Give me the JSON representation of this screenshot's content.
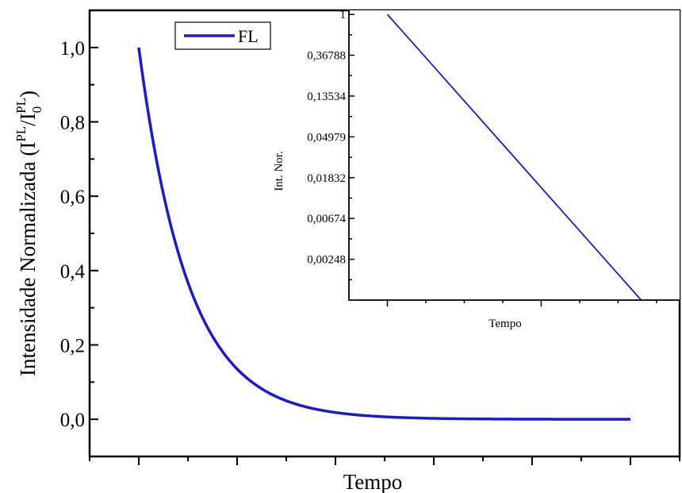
{
  "chart_data": [
    {
      "type": "line",
      "title": "",
      "xlabel": "Tempo",
      "ylabel_parts": {
        "main": "Intensidade Normalizada (I",
        "sup1": "PL",
        "slash": "/I",
        "sub": "0",
        "sup2": "PL",
        "close": ")"
      },
      "xlim": [
        -1.0,
        11.0
      ],
      "ylim": [
        -0.1,
        1.1
      ],
      "yticks": [
        0.0,
        0.2,
        0.4,
        0.6,
        0.8,
        1.0
      ],
      "ytick_labels": [
        "0,0",
        "0,2",
        "0,4",
        "0,6",
        "0,8",
        "1,0"
      ],
      "x_major_ticks": [
        0,
        2,
        4,
        6,
        8,
        10
      ],
      "x_tick_labels_shown": false,
      "legend": {
        "position": "top-left",
        "entries": [
          "FL"
        ]
      },
      "series": [
        {
          "name": "FL",
          "color": "#1a1ad6",
          "function": "exp(-x)",
          "x": [
            0,
            0.25,
            0.5,
            0.75,
            1,
            1.25,
            1.5,
            1.75,
            2,
            2.25,
            2.5,
            2.75,
            3,
            3.25,
            3.5,
            3.75,
            4,
            4.5,
            5,
            5.5,
            6,
            6.5,
            7,
            7.5,
            8,
            8.5,
            9,
            9.5,
            10
          ],
          "y": [
            1.0,
            0.7788,
            0.6065,
            0.4724,
            0.3679,
            0.2865,
            0.2231,
            0.1738,
            0.1353,
            0.1054,
            0.0821,
            0.0639,
            0.0498,
            0.0388,
            0.0302,
            0.0235,
            0.0183,
            0.0111,
            0.0067,
            0.0041,
            0.0025,
            0.0015,
            0.0009,
            0.0006,
            0.0003,
            0.0002,
            0.0001,
            0.0001,
            0.0
          ]
        }
      ]
    },
    {
      "type": "line",
      "title": "",
      "xlabel": "Tempo",
      "ylabel": "Int. Nor.",
      "yscale": "log",
      "xlim": [
        -1.0,
        7.6
      ],
      "ylim_ln": [
        -7.0,
        0.1
      ],
      "yticks_ln": [
        0,
        -1,
        -2,
        -3,
        -4,
        -5,
        -6
      ],
      "ytick_labels": [
        "1",
        "0,36788",
        "0,13534",
        "0,04979",
        "0,01832",
        "0,00674",
        "0,00248"
      ],
      "x_major_ticks": [
        0,
        4
      ],
      "x_tick_labels_shown": false,
      "series": [
        {
          "color": "#1a1ad6",
          "x": [
            0,
            6.6
          ],
          "y_ln": [
            0,
            -7.0
          ]
        }
      ]
    }
  ]
}
